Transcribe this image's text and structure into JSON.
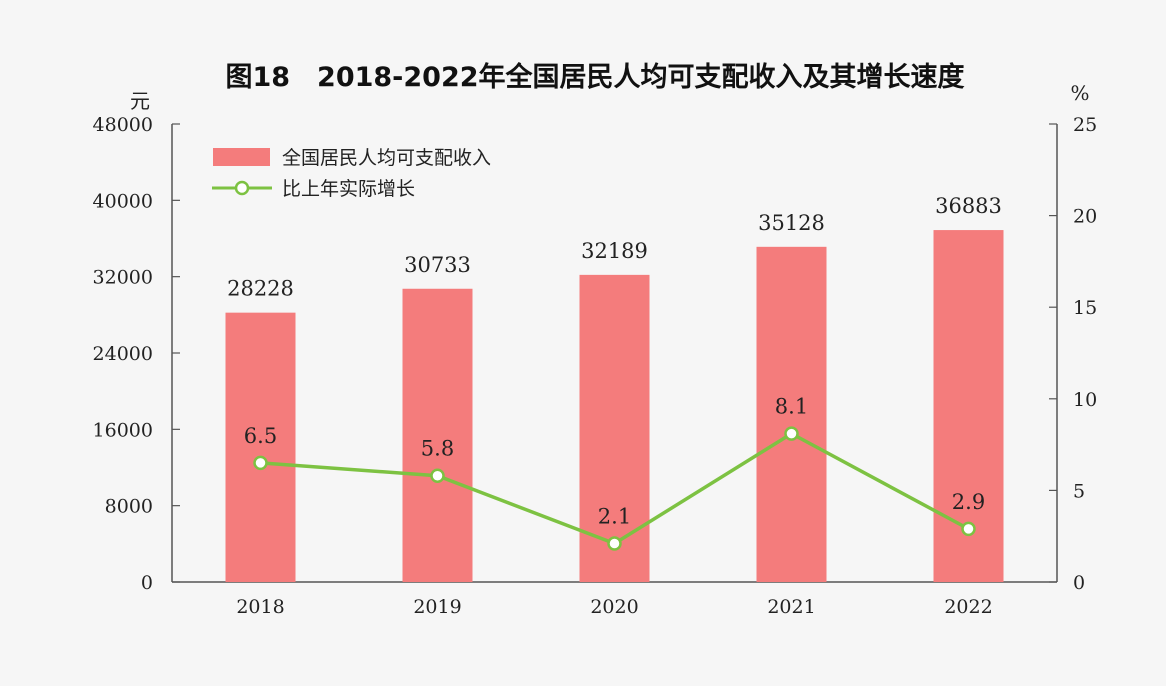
{
  "chart_data": {
    "type": "bar",
    "title": "图18　2018-2022年全国居民人均可支配收入及其增长速度",
    "categories": [
      "2018",
      "2019",
      "2020",
      "2021",
      "2022"
    ],
    "series": [
      {
        "name": "全国居民人均可支配收入",
        "type": "bar",
        "axis": "left",
        "values": [
          28228,
          30733,
          32189,
          35128,
          36883
        ],
        "labels": [
          "28228",
          "30733",
          "32189",
          "35128",
          "36883"
        ]
      },
      {
        "name": "比上年实际增长",
        "type": "line",
        "axis": "right",
        "values": [
          6.5,
          5.8,
          2.1,
          8.1,
          2.9
        ],
        "labels": [
          "6.5",
          "5.8",
          "2.1",
          "8.1",
          "2.9"
        ]
      }
    ],
    "y_left": {
      "unit": "元",
      "min": 0,
      "max": 48000,
      "ticks": [
        "0",
        "8000",
        "16000",
        "24000",
        "32000",
        "40000",
        "48000"
      ]
    },
    "y_right": {
      "unit": "%",
      "min": 0,
      "max": 25,
      "ticks": [
        "0",
        "5",
        "10",
        "15",
        "20",
        "25"
      ]
    },
    "legend_position": "top-left",
    "grid": false,
    "colors": {
      "bar": "#f47c7c",
      "line": "#7dc242",
      "marker_fill": "#ffffff"
    }
  }
}
